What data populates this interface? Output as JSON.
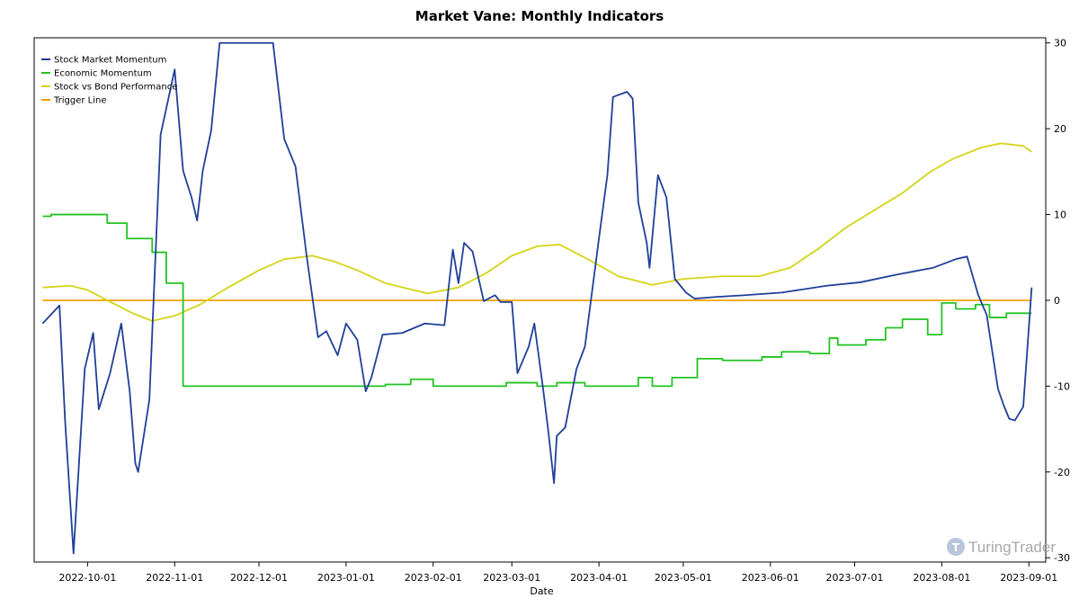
{
  "chart_data": {
    "type": "line",
    "title": "Market Vane: Monthly Indicators",
    "xlabel": "Date",
    "ylabel": "",
    "xlim": [
      "2022-09-12",
      "2023-09-07"
    ],
    "ylim": [
      -30.5,
      30.6
    ],
    "y_axis_side": "right",
    "yticks": [
      30,
      20,
      10,
      0,
      -10,
      -20,
      -30
    ],
    "xticks": [
      "2022-10-01",
      "2022-11-01",
      "2022-12-01",
      "2023-01-01",
      "2023-02-01",
      "2023-03-01",
      "2023-04-01",
      "2023-05-01",
      "2023-06-01",
      "2023-07-01",
      "2023-08-01",
      "2023-09-01"
    ],
    "grid": false,
    "legend_position": "top-left",
    "watermark": "TuringTrader",
    "series": [
      {
        "name": "Stock Market Momentum",
        "color": "#1f3f99",
        "step": false,
        "points": [
          [
            "2022-09-15",
            -2.7
          ],
          [
            "2022-09-21",
            -0.6
          ],
          [
            "2022-09-23",
            -14
          ],
          [
            "2022-09-26",
            -29.5
          ],
          [
            "2022-09-30",
            -8
          ],
          [
            "2022-10-03",
            -3.8
          ],
          [
            "2022-10-05",
            -12.7
          ],
          [
            "2022-10-09",
            -8.5
          ],
          [
            "2022-10-13",
            -2.7
          ],
          [
            "2022-10-16",
            -10.6
          ],
          [
            "2022-10-18",
            -19
          ],
          [
            "2022-10-19",
            -20
          ],
          [
            "2022-10-23",
            -11.6
          ],
          [
            "2022-10-27",
            19.3
          ],
          [
            "2022-11-01",
            26.9
          ],
          [
            "2022-11-04",
            15.1
          ],
          [
            "2022-11-07",
            12
          ],
          [
            "2022-11-09",
            9.3
          ],
          [
            "2022-11-11",
            15.1
          ],
          [
            "2022-11-14",
            19.8
          ],
          [
            "2022-11-17",
            30
          ],
          [
            "2022-12-06",
            30
          ],
          [
            "2022-12-10",
            18.8
          ],
          [
            "2022-12-14",
            15.6
          ],
          [
            "2022-12-18",
            5.1
          ],
          [
            "2022-12-22",
            -4.3
          ],
          [
            "2022-12-25",
            -3.6
          ],
          [
            "2022-12-29",
            -6.4
          ],
          [
            "2023-01-01",
            -2.7
          ],
          [
            "2023-01-05",
            -4.6
          ],
          [
            "2023-01-08",
            -10.6
          ],
          [
            "2023-01-10",
            -9
          ],
          [
            "2023-01-14",
            -4
          ],
          [
            "2023-01-21",
            -3.8
          ],
          [
            "2023-01-29",
            -2.7
          ],
          [
            "2023-02-05",
            -2.9
          ],
          [
            "2023-02-08",
            5.9
          ],
          [
            "2023-02-10",
            2
          ],
          [
            "2023-02-12",
            6.7
          ],
          [
            "2023-02-15",
            5.7
          ],
          [
            "2023-02-19",
            -0.1
          ],
          [
            "2023-02-23",
            0.6
          ],
          [
            "2023-02-25",
            -0.2
          ],
          [
            "2023-03-01",
            -0.2
          ],
          [
            "2023-03-03",
            -8.5
          ],
          [
            "2023-03-07",
            -5.4
          ],
          [
            "2023-03-09",
            -2.7
          ],
          [
            "2023-03-12",
            -10
          ],
          [
            "2023-03-14",
            -15.3
          ],
          [
            "2023-03-16",
            -21.3
          ],
          [
            "2023-03-17",
            -15.8
          ],
          [
            "2023-03-20",
            -14.8
          ],
          [
            "2023-03-24",
            -8
          ],
          [
            "2023-03-27",
            -5.4
          ],
          [
            "2023-04-01",
            7.2
          ],
          [
            "2023-04-04",
            14.6
          ],
          [
            "2023-04-06",
            23.7
          ],
          [
            "2023-04-11",
            24.3
          ],
          [
            "2023-04-13",
            23.5
          ],
          [
            "2023-04-15",
            11.4
          ],
          [
            "2023-04-18",
            6.7
          ],
          [
            "2023-04-19",
            3.8
          ],
          [
            "2023-04-22",
            14.6
          ],
          [
            "2023-04-25",
            12
          ],
          [
            "2023-04-28",
            2.5
          ],
          [
            "2023-05-02",
            0.9
          ],
          [
            "2023-05-05",
            0.2
          ],
          [
            "2023-05-13",
            0.4
          ],
          [
            "2023-05-23",
            0.6
          ],
          [
            "2023-06-05",
            0.9
          ],
          [
            "2023-06-21",
            1.7
          ],
          [
            "2023-07-03",
            2.1
          ],
          [
            "2023-07-16",
            3
          ],
          [
            "2023-07-29",
            3.8
          ],
          [
            "2023-08-06",
            4.8
          ],
          [
            "2023-08-10",
            5.1
          ],
          [
            "2023-08-14",
            0.6
          ],
          [
            "2023-08-17",
            -1.7
          ],
          [
            "2023-08-21",
            -10.3
          ],
          [
            "2023-08-23",
            -12.2
          ],
          [
            "2023-08-25",
            -13.8
          ],
          [
            "2023-08-27",
            -14
          ],
          [
            "2023-08-30",
            -12.4
          ],
          [
            "2023-09-02",
            1.5
          ]
        ]
      },
      {
        "name": "Economic Momentum",
        "color": "#22c322",
        "step": true,
        "points": [
          [
            "2022-09-15",
            9.8
          ],
          [
            "2022-09-18",
            10
          ],
          [
            "2022-10-08",
            9
          ],
          [
            "2022-10-15",
            7.2
          ],
          [
            "2022-10-24",
            5.6
          ],
          [
            "2022-10-29",
            2
          ],
          [
            "2022-11-04",
            -10
          ],
          [
            "2023-01-15",
            -9.8
          ],
          [
            "2023-01-24",
            -9.2
          ],
          [
            "2023-02-01",
            -10
          ],
          [
            "2023-02-27",
            -9.6
          ],
          [
            "2023-03-10",
            -10
          ],
          [
            "2023-03-17",
            -9.6
          ],
          [
            "2023-03-27",
            -10
          ],
          [
            "2023-04-15",
            -9
          ],
          [
            "2023-04-20",
            -10
          ],
          [
            "2023-04-27",
            -9
          ],
          [
            "2023-05-06",
            -6.8
          ],
          [
            "2023-05-15",
            -7
          ],
          [
            "2023-05-29",
            -6.6
          ],
          [
            "2023-06-05",
            -6
          ],
          [
            "2023-06-15",
            -6.2
          ],
          [
            "2023-06-22",
            -4.4
          ],
          [
            "2023-06-25",
            -5.2
          ],
          [
            "2023-07-05",
            -4.6
          ],
          [
            "2023-07-12",
            -3.2
          ],
          [
            "2023-07-18",
            -2.2
          ],
          [
            "2023-07-27",
            -4
          ],
          [
            "2023-08-01",
            -0.3
          ],
          [
            "2023-08-06",
            -1
          ],
          [
            "2023-08-13",
            -0.5
          ],
          [
            "2023-08-18",
            -2
          ],
          [
            "2023-08-24",
            -1.5
          ],
          [
            "2023-09-02",
            -1.5
          ]
        ]
      },
      {
        "name": "Stock vs Bond Performance",
        "color": "#d4d418",
        "step": false,
        "points": [
          [
            "2022-09-15",
            1.5
          ],
          [
            "2022-09-25",
            1.7
          ],
          [
            "2022-10-01",
            1.2
          ],
          [
            "2022-10-08",
            0
          ],
          [
            "2022-10-17",
            -1.5
          ],
          [
            "2022-10-24",
            -2.4
          ],
          [
            "2022-11-01",
            -1.8
          ],
          [
            "2022-11-10",
            -0.5
          ],
          [
            "2022-11-20",
            1.5
          ],
          [
            "2022-12-01",
            3.5
          ],
          [
            "2022-12-10",
            4.8
          ],
          [
            "2022-12-20",
            5.2
          ],
          [
            "2022-12-28",
            4.5
          ],
          [
            "2023-01-05",
            3.5
          ],
          [
            "2023-01-15",
            2
          ],
          [
            "2023-01-30",
            0.8
          ],
          [
            "2023-02-10",
            1.5
          ],
          [
            "2023-02-20",
            3.2
          ],
          [
            "2023-03-01",
            5.2
          ],
          [
            "2023-03-10",
            6.3
          ],
          [
            "2023-03-18",
            6.5
          ],
          [
            "2023-03-28",
            4.8
          ],
          [
            "2023-04-08",
            2.8
          ],
          [
            "2023-04-20",
            1.8
          ],
          [
            "2023-05-01",
            2.5
          ],
          [
            "2023-05-15",
            2.8
          ],
          [
            "2023-05-28",
            2.8
          ],
          [
            "2023-06-08",
            3.8
          ],
          [
            "2023-06-18",
            6
          ],
          [
            "2023-06-28",
            8.5
          ],
          [
            "2023-07-08",
            10.5
          ],
          [
            "2023-07-18",
            12.5
          ],
          [
            "2023-07-28",
            15
          ],
          [
            "2023-08-05",
            16.5
          ],
          [
            "2023-08-15",
            17.8
          ],
          [
            "2023-08-22",
            18.3
          ],
          [
            "2023-08-30",
            18
          ],
          [
            "2023-09-02",
            17.3
          ]
        ]
      },
      {
        "name": "Trigger Line",
        "color": "#f0a000",
        "step": false,
        "points": [
          [
            "2022-09-15",
            0
          ],
          [
            "2023-09-02",
            0
          ]
        ]
      }
    ]
  }
}
